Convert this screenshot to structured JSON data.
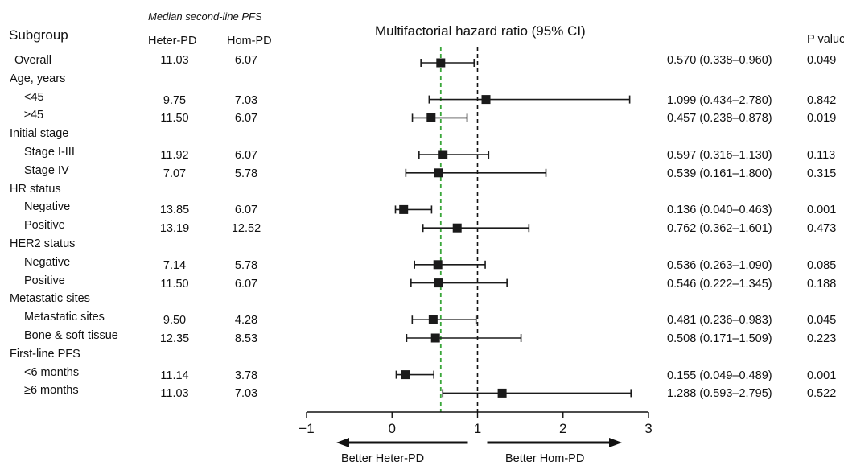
{
  "header": {
    "subgroup": "Subgroup",
    "median_label": "Median second-line PFS",
    "col_heter": "Heter-PD",
    "col_hom": "Hom-PD",
    "pvalue": "P value"
  },
  "chart_data": {
    "type": "forest",
    "title": "Multifactorial hazard ratio (95% CI)",
    "xlim": [
      -1,
      3
    ],
    "x_ticks": [
      "−1",
      "0",
      "1",
      "2",
      "3"
    ],
    "x_tick_values": [
      -1,
      0,
      1,
      2,
      3
    ],
    "reference_line": 1,
    "overall_line": 0.57,
    "left_arrow_label": "Better Heter-PD",
    "right_arrow_label": "Better Hom-PD",
    "rows": [
      {
        "kind": "data",
        "label": "Overall",
        "indent": false,
        "heter": "11.03",
        "hom": "6.07",
        "hr": 0.57,
        "lo": 0.338,
        "hi": 0.96,
        "ci_text": "0.570 (0.338–0.960)",
        "p": "0.049"
      },
      {
        "kind": "header",
        "label": "Age, years"
      },
      {
        "kind": "data",
        "label": "<45",
        "indent": true,
        "heter": "9.75",
        "hom": "7.03",
        "hr": 1.099,
        "lo": 0.434,
        "hi": 2.78,
        "ci_text": "1.099 (0.434–2.780)",
        "p": "0.842"
      },
      {
        "kind": "data",
        "label": "≥45",
        "indent": true,
        "heter": "11.50",
        "hom": "6.07",
        "hr": 0.457,
        "lo": 0.238,
        "hi": 0.878,
        "ci_text": "0.457 (0.238–0.878)",
        "p": "0.019"
      },
      {
        "kind": "header",
        "label": "Initial stage"
      },
      {
        "kind": "data",
        "label": "Stage I-III",
        "indent": true,
        "heter": "11.92",
        "hom": "6.07",
        "hr": 0.597,
        "lo": 0.316,
        "hi": 1.13,
        "ci_text": "0.597 (0.316–1.130)",
        "p": "0.113"
      },
      {
        "kind": "data",
        "label": "Stage IV",
        "indent": true,
        "heter": "7.07",
        "hom": "5.78",
        "hr": 0.539,
        "lo": 0.161,
        "hi": 1.8,
        "ci_text": "0.539 (0.161–1.800)",
        "p": "0.315"
      },
      {
        "kind": "header",
        "label": "HR status"
      },
      {
        "kind": "data",
        "label": "Negative",
        "indent": true,
        "heter": "13.85",
        "hom": "6.07",
        "hr": 0.136,
        "lo": 0.04,
        "hi": 0.463,
        "ci_text": "0.136 (0.040–0.463)",
        "p": "0.001"
      },
      {
        "kind": "data",
        "label": "Positive",
        "indent": true,
        "heter": "13.19",
        "hom": "12.52",
        "hr": 0.762,
        "lo": 0.362,
        "hi": 1.601,
        "ci_text": "0.762 (0.362–1.601)",
        "p": "0.473"
      },
      {
        "kind": "header",
        "label": "HER2 status"
      },
      {
        "kind": "data",
        "label": "Negative",
        "indent": true,
        "heter": "7.14",
        "hom": "5.78",
        "hr": 0.536,
        "lo": 0.263,
        "hi": 1.09,
        "ci_text": "0.536 (0.263–1.090)",
        "p": "0.085"
      },
      {
        "kind": "data",
        "label": "Positive",
        "indent": true,
        "heter": "11.50",
        "hom": "6.07",
        "hr": 0.546,
        "lo": 0.222,
        "hi": 1.345,
        "ci_text": "0.546 (0.222–1.345)",
        "p": "0.188"
      },
      {
        "kind": "header",
        "label": "Metastatic sites"
      },
      {
        "kind": "data",
        "label": "Metastatic sites",
        "indent": true,
        "heter": "9.50",
        "hom": "4.28",
        "hr": 0.481,
        "lo": 0.236,
        "hi": 0.983,
        "ci_text": "0.481 (0.236–0.983)",
        "p": "0.045"
      },
      {
        "kind": "data",
        "label": "Bone & soft tissue",
        "indent": true,
        "heter": "12.35",
        "hom": "8.53",
        "hr": 0.508,
        "lo": 0.171,
        "hi": 1.509,
        "ci_text": "0.508 (0.171–1.509)",
        "p": "0.223"
      },
      {
        "kind": "header",
        "label": "First-line PFS"
      },
      {
        "kind": "data",
        "label": "<6 months",
        "indent": true,
        "heter": "11.14",
        "hom": "3.78",
        "hr": 0.155,
        "lo": 0.049,
        "hi": 0.489,
        "ci_text": "0.155 (0.049–0.489)",
        "p": "0.001"
      },
      {
        "kind": "data",
        "label": "≥6 months",
        "indent": true,
        "heter": "11.03",
        "hom": "7.03",
        "hr": 1.288,
        "lo": 0.593,
        "hi": 2.795,
        "ci_text": "1.288 (0.593–2.795)",
        "p": "0.522"
      }
    ]
  },
  "colors": {
    "text": "#111111",
    "marker": "#1a1a1a",
    "reference_line": "#111111",
    "overall_line": "#3aa63a"
  }
}
